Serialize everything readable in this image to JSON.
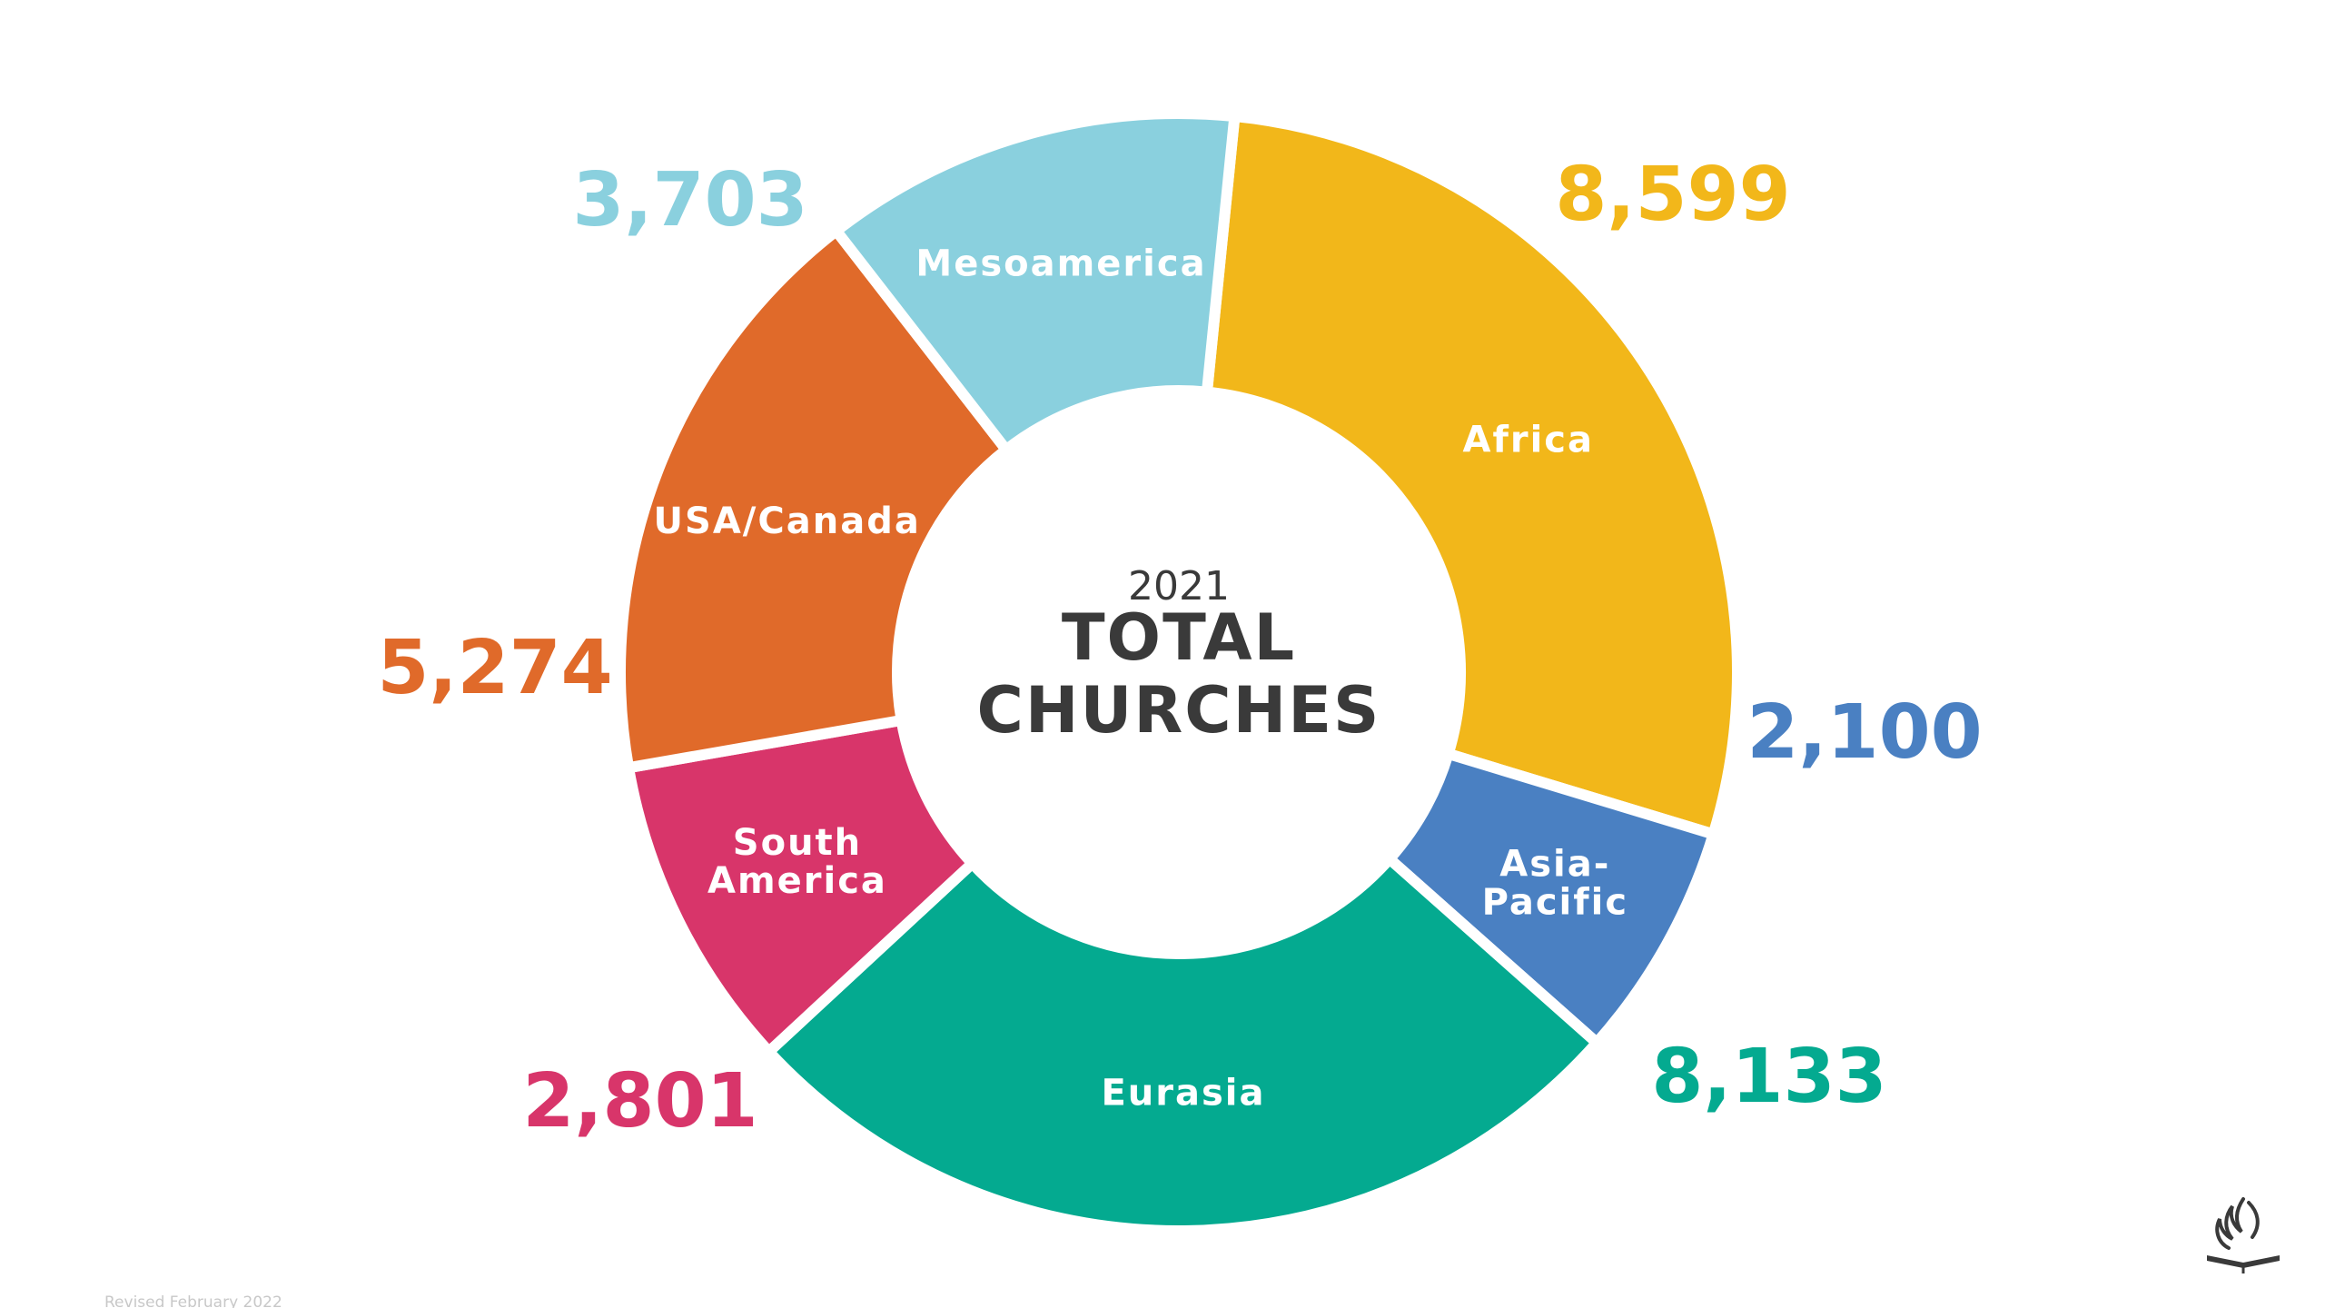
{
  "chart_data": {
    "type": "donut",
    "center_year": "2021",
    "center_title_lines": [
      "TOTAL",
      "CHURCHES"
    ],
    "slices": [
      {
        "name": "Africa",
        "label_lines": [
          "Africa"
        ],
        "value": 8599,
        "value_label": "8,599",
        "color": "#F2B71A"
      },
      {
        "name": "Asia-Pacific",
        "label_lines": [
          "Asia-",
          "Pacific"
        ],
        "value": 2100,
        "value_label": "2,100",
        "color": "#4A80C2"
      },
      {
        "name": "Eurasia",
        "label_lines": [
          "Eurasia"
        ],
        "value": 8133,
        "value_label": "8,133",
        "color": "#04AA90"
      },
      {
        "name": "South America",
        "label_lines": [
          "South",
          "America"
        ],
        "value": 2801,
        "value_label": "2,801",
        "color": "#D8356A"
      },
      {
        "name": "USA/Canada",
        "label_lines": [
          "USA/Canada"
        ],
        "value": 5274,
        "value_label": "5,274",
        "color": "#E06A2A"
      },
      {
        "name": "Mesoamerica",
        "label_lines": [
          "Mesoamerica"
        ],
        "value": 3703,
        "value_label": "3,703",
        "color": "#8AD0DE"
      }
    ]
  },
  "footer": {
    "revised": "Revised February 2022"
  },
  "logo": {
    "icon": "flame-book-icon",
    "color": "#3a3a3a"
  }
}
